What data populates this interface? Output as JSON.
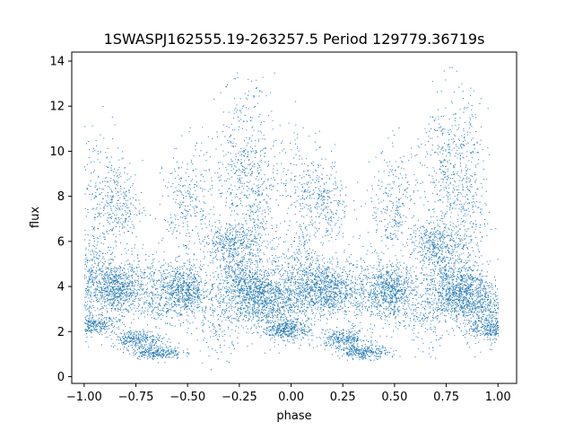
{
  "chart_data": {
    "type": "scatter",
    "title": "1SWASPJ162555.19-263257.5 Period 129779.36719s",
    "xlabel": "phase",
    "ylabel": "flux",
    "xlim": [
      -1.06,
      1.09
    ],
    "ylim": [
      -0.3,
      14.4
    ],
    "xticks": [
      -1.0,
      -0.75,
      -0.5,
      -0.25,
      0.0,
      0.25,
      0.5,
      0.75,
      1.0
    ],
    "xtick_labels": [
      "−1.00",
      "−0.75",
      "−0.50",
      "−0.25",
      "0.00",
      "0.25",
      "0.50",
      "0.75",
      "1.00"
    ],
    "yticks": [
      0,
      2,
      4,
      6,
      8,
      10,
      12,
      14
    ],
    "ytick_labels": [
      "0",
      "2",
      "4",
      "6",
      "8",
      "10",
      "12",
      "14"
    ],
    "grid": false,
    "marker_color": "#1f77b4",
    "series": [
      {
        "phase_flux_density": [
          {
            "phase": -0.97,
            "flux": 2.3,
            "spread": 0.2,
            "weight": 2
          },
          {
            "phase": -0.97,
            "flux": 4.2,
            "spread": 1.0,
            "weight": 3
          },
          {
            "phase": -0.95,
            "flux": 8.5,
            "spread": 1.5,
            "weight": 1
          },
          {
            "phase": -0.84,
            "flux": 3.9,
            "spread": 0.6,
            "weight": 5
          },
          {
            "phase": -0.84,
            "flux": 7.6,
            "spread": 1.0,
            "weight": 2
          },
          {
            "phase": -0.75,
            "flux": 1.7,
            "spread": 0.2,
            "weight": 2
          },
          {
            "phase": -0.68,
            "flux": 3.8,
            "spread": 0.9,
            "weight": 2
          },
          {
            "phase": -0.65,
            "flux": 1.1,
            "spread": 0.15,
            "weight": 2
          },
          {
            "phase": -0.52,
            "flux": 3.8,
            "spread": 0.6,
            "weight": 5
          },
          {
            "phase": -0.5,
            "flux": 7.5,
            "spread": 1.3,
            "weight": 2
          },
          {
            "phase": -0.35,
            "flux": 2.5,
            "spread": 0.8,
            "weight": 1
          },
          {
            "phase": -0.3,
            "flux": 6.0,
            "spread": 0.4,
            "weight": 2
          },
          {
            "phase": -0.28,
            "flux": 4.3,
            "spread": 0.9,
            "weight": 3
          },
          {
            "phase": -0.25,
            "flux": 9.5,
            "spread": 1.8,
            "weight": 2
          },
          {
            "phase": -0.17,
            "flux": 3.7,
            "spread": 0.6,
            "weight": 5
          },
          {
            "phase": -0.17,
            "flux": 7.5,
            "spread": 2.2,
            "weight": 3
          },
          {
            "phase": -0.05,
            "flux": 3.0,
            "spread": 0.7,
            "weight": 3
          },
          {
            "phase": -0.02,
            "flux": 2.1,
            "spread": 0.2,
            "weight": 2
          },
          {
            "phase": 0.03,
            "flux": 4.2,
            "spread": 1.0,
            "weight": 3
          },
          {
            "phase": 0.05,
            "flux": 8.5,
            "spread": 1.5,
            "weight": 1
          },
          {
            "phase": 0.16,
            "flux": 3.9,
            "spread": 0.6,
            "weight": 5
          },
          {
            "phase": 0.16,
            "flux": 7.6,
            "spread": 1.0,
            "weight": 2
          },
          {
            "phase": 0.25,
            "flux": 1.7,
            "spread": 0.2,
            "weight": 2
          },
          {
            "phase": 0.32,
            "flux": 3.8,
            "spread": 0.9,
            "weight": 2
          },
          {
            "phase": 0.35,
            "flux": 1.1,
            "spread": 0.15,
            "weight": 2
          },
          {
            "phase": 0.48,
            "flux": 3.8,
            "spread": 0.6,
            "weight": 5
          },
          {
            "phase": 0.5,
            "flux": 7.5,
            "spread": 1.3,
            "weight": 2
          },
          {
            "phase": 0.65,
            "flux": 2.5,
            "spread": 0.8,
            "weight": 1
          },
          {
            "phase": 0.7,
            "flux": 6.0,
            "spread": 0.4,
            "weight": 2
          },
          {
            "phase": 0.72,
            "flux": 4.3,
            "spread": 0.9,
            "weight": 3
          },
          {
            "phase": 0.75,
            "flux": 9.5,
            "spread": 1.8,
            "weight": 2
          },
          {
            "phase": 0.83,
            "flux": 3.7,
            "spread": 0.6,
            "weight": 5
          },
          {
            "phase": 0.83,
            "flux": 7.5,
            "spread": 2.2,
            "weight": 3
          },
          {
            "phase": 0.95,
            "flux": 3.0,
            "spread": 0.7,
            "weight": 3
          },
          {
            "phase": 0.98,
            "flux": 2.1,
            "spread": 0.2,
            "weight": 2
          }
        ]
      }
    ]
  }
}
